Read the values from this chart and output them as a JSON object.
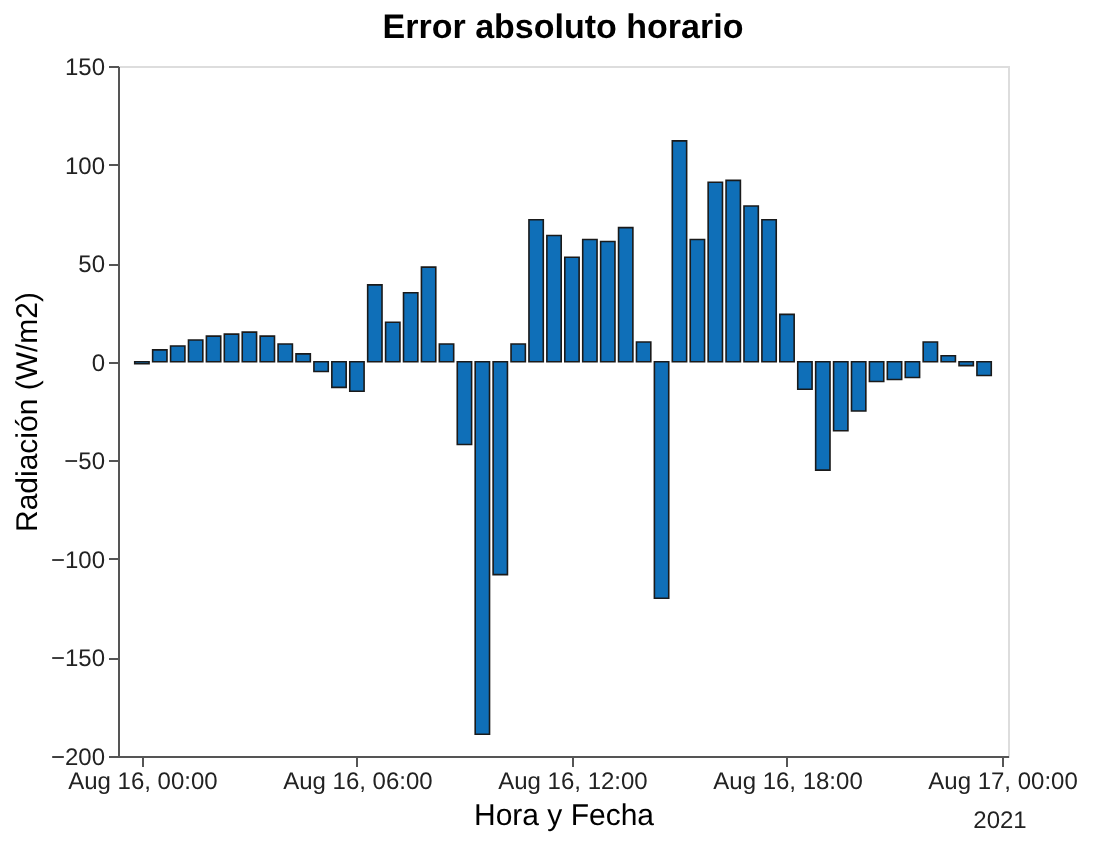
{
  "chart_data": {
    "type": "bar",
    "title": "Error absoluto horario",
    "xlabel": "Hora y Fecha",
    "ylabel": "Radiación (W/m2)",
    "x": [
      "2021-08-16T00:00",
      "2021-08-16T00:30",
      "2021-08-16T01:00",
      "2021-08-16T01:30",
      "2021-08-16T02:00",
      "2021-08-16T02:30",
      "2021-08-16T03:00",
      "2021-08-16T03:30",
      "2021-08-16T04:00",
      "2021-08-16T04:30",
      "2021-08-16T05:00",
      "2021-08-16T05:30",
      "2021-08-16T06:00",
      "2021-08-16T06:30",
      "2021-08-16T07:00",
      "2021-08-16T07:30",
      "2021-08-16T08:00",
      "2021-08-16T08:30",
      "2021-08-16T09:00",
      "2021-08-16T09:30",
      "2021-08-16T10:00",
      "2021-08-16T10:30",
      "2021-08-16T11:00",
      "2021-08-16T11:30",
      "2021-08-16T12:00",
      "2021-08-16T12:30",
      "2021-08-16T13:00",
      "2021-08-16T13:30",
      "2021-08-16T14:00",
      "2021-08-16T14:30",
      "2021-08-16T15:00",
      "2021-08-16T15:30",
      "2021-08-16T16:00",
      "2021-08-16T16:30",
      "2021-08-16T17:00",
      "2021-08-16T17:30",
      "2021-08-16T18:00",
      "2021-08-16T18:30",
      "2021-08-16T19:00",
      "2021-08-16T19:30",
      "2021-08-16T20:00",
      "2021-08-16T20:30",
      "2021-08-16T21:00",
      "2021-08-16T21:30",
      "2021-08-16T22:00",
      "2021-08-16T22:30",
      "2021-08-16T23:00",
      "2021-08-16T23:30"
    ],
    "values": [
      -1,
      6,
      8,
      11,
      13,
      14,
      15,
      13,
      9,
      4,
      -5,
      -13,
      -15,
      39,
      20,
      35,
      48,
      9,
      -42,
      -189,
      -108,
      9,
      72,
      64,
      53,
      62,
      61,
      68,
      10,
      -120,
      112,
      62,
      91,
      92,
      79,
      72,
      24,
      -14,
      -55,
      -35,
      -25,
      -10,
      -9,
      -8,
      10,
      3,
      -2,
      -7
    ],
    "color": "#0f6fb8",
    "xlim": [
      "2021-08-15T23:20",
      "2021-08-17T00:10"
    ],
    "xticks": [
      {
        "value": "2021-08-16T00:00",
        "label": "Aug 16, 00:00"
      },
      {
        "value": "2021-08-16T06:00",
        "label": "Aug 16, 06:00"
      },
      {
        "value": "2021-08-16T12:00",
        "label": "Aug 16, 12:00"
      },
      {
        "value": "2021-08-16T18:00",
        "label": "Aug 16, 18:00"
      },
      {
        "value": "2021-08-17T00:00",
        "label": "Aug 17, 00:00"
      }
    ],
    "ylim": [
      -200,
      150
    ],
    "yticks": [
      -200,
      -150,
      -100,
      -50,
      0,
      50,
      100,
      150
    ],
    "annotations": [
      "2021"
    ],
    "grid": false
  }
}
